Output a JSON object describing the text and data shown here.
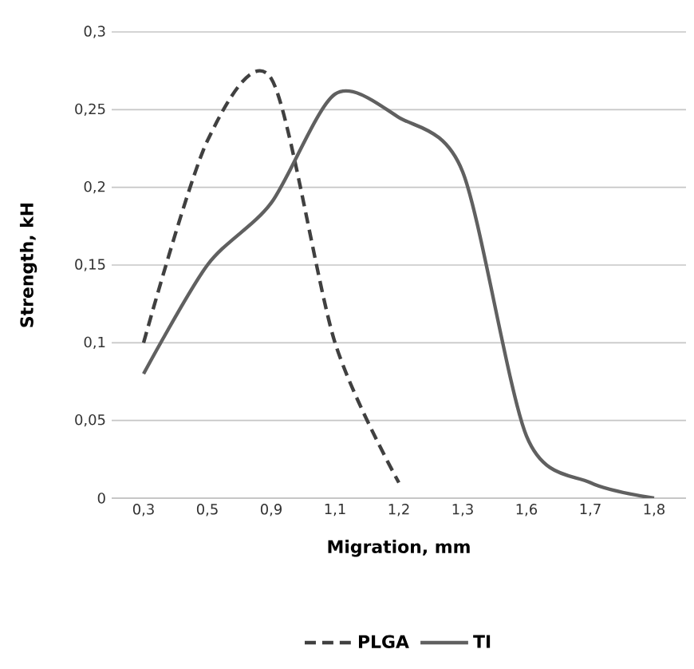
{
  "chart_data": {
    "type": "line",
    "xlabel": "Migration, mm",
    "ylabel": "Strength, kH",
    "categories": [
      "0,3",
      "0,5",
      "0,9",
      "1,1",
      "1,2",
      "1,3",
      "1,6",
      "1,7",
      "1,8"
    ],
    "series": [
      {
        "name": "PLGA",
        "color": "#404040",
        "line_style": "dashed",
        "values": [
          0.1,
          0.23,
          0.27,
          0.1,
          0.01,
          null,
          null,
          null,
          null
        ]
      },
      {
        "name": "TI",
        "color": "#606060",
        "line_style": "solid",
        "values": [
          0.08,
          0.15,
          0.19,
          0.26,
          0.245,
          0.21,
          0.04,
          0.01,
          0
        ]
      }
    ],
    "ylim": [
      0,
      0.3
    ],
    "yticks": [
      {
        "value": 0,
        "label": "0"
      },
      {
        "value": 0.05,
        "label": "0,05"
      },
      {
        "value": 0.1,
        "label": "0,1"
      },
      {
        "value": 0.15,
        "label": "0,15"
      },
      {
        "value": 0.2,
        "label": "0,2"
      },
      {
        "value": 0.25,
        "label": "0,25"
      },
      {
        "value": 0.3,
        "label": "0,3"
      }
    ],
    "grid": "y",
    "legend": "bottom",
    "marker": "none"
  }
}
